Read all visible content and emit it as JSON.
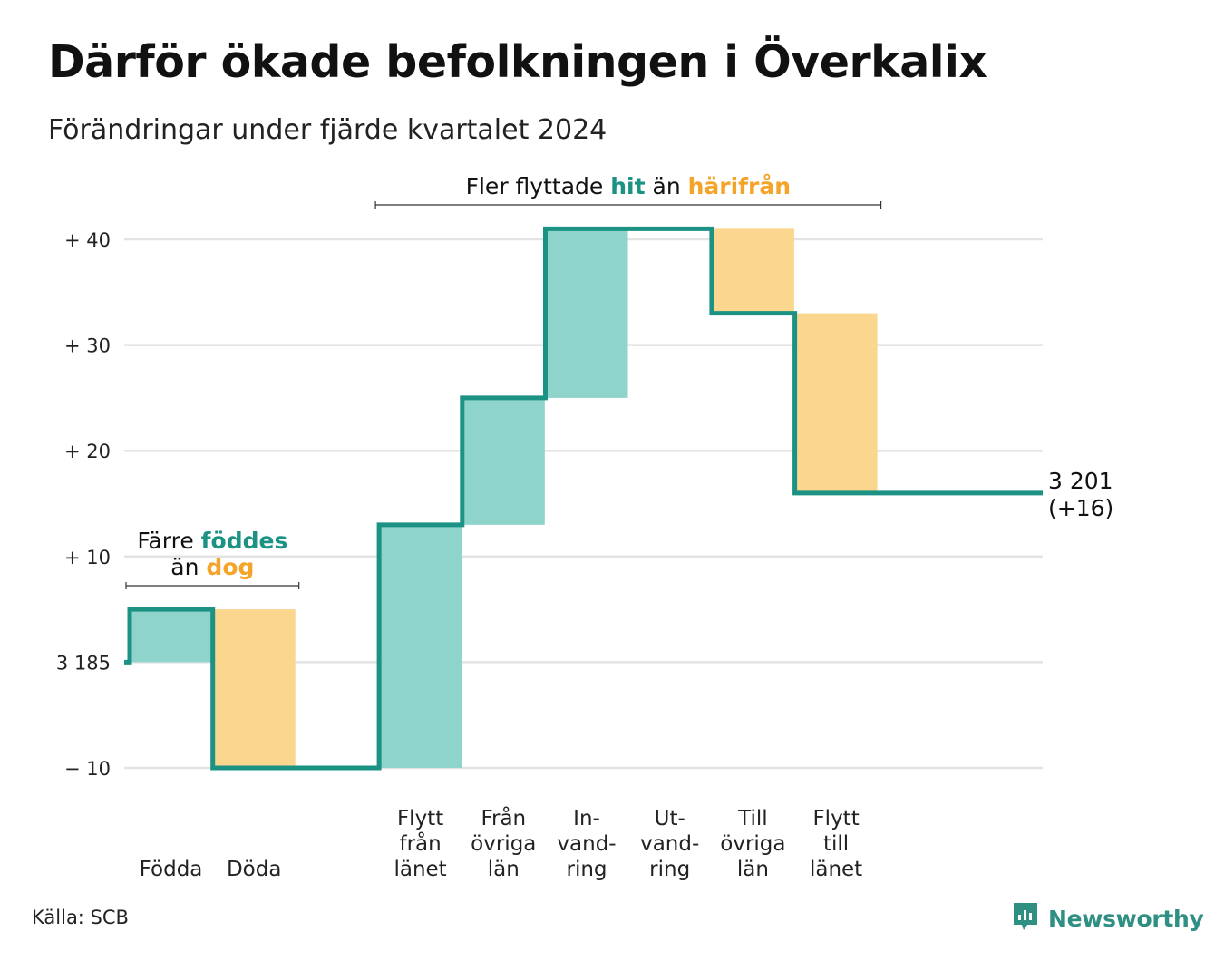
{
  "title": "Därför ökade befolkningen i Överkalix",
  "subtitle": "Förändringar under fjärde kvartalet 2024",
  "source": "Källa: SCB",
  "brand": {
    "name": "Newsworthy",
    "icon": "newsworthy-logo-icon",
    "color": "#2f8f83"
  },
  "colors": {
    "increase": "#8ed4cb",
    "decrease": "#fad68f",
    "line": "#1b9283",
    "grid": "#e3e3e3",
    "accent_teal": "#1b9283",
    "accent_orange": "#f5a42a"
  },
  "chart_data": {
    "type": "waterfall",
    "start": {
      "label": "3 185",
      "value": 3185
    },
    "end": {
      "label_value": "3 201",
      "label_change": "(+16)",
      "value": 3201,
      "change": 16
    },
    "ylim": [
      -10,
      40
    ],
    "yticks": [
      {
        "value": 40,
        "label": "+ 40"
      },
      {
        "value": 30,
        "label": "+ 30"
      },
      {
        "value": 20,
        "label": "+ 20"
      },
      {
        "value": 10,
        "label": "+ 10"
      },
      {
        "value": 0,
        "label": "3 185"
      },
      {
        "value": -10,
        "label": "− 10"
      }
    ],
    "steps": [
      {
        "label": [
          "Födda"
        ],
        "value": 5
      },
      {
        "label": [
          "Döda"
        ],
        "value": -15
      },
      {
        "label": [
          "Flytt",
          "från",
          "länet"
        ],
        "value": 23
      },
      {
        "label": [
          "Från",
          "övriga",
          "län"
        ],
        "value": 12
      },
      {
        "label": [
          "In-",
          "vand-",
          "ring"
        ],
        "value": 16
      },
      {
        "label": [
          "Ut-",
          "vand-",
          "ring"
        ],
        "value": 0
      },
      {
        "label": [
          "Till",
          "övriga",
          "län"
        ],
        "value": -8
      },
      {
        "label": [
          "Flytt",
          "till",
          "länet"
        ],
        "value": -17
      }
    ],
    "annotations": [
      {
        "lines": [
          [
            {
              "text": "Färre ",
              "color": "dark"
            },
            {
              "text": "föddes",
              "color": "teal"
            }
          ],
          [
            {
              "text": "än ",
              "color": "dark"
            },
            {
              "text": "dog",
              "color": "orange"
            }
          ]
        ],
        "span": [
          "Födda",
          "Döda"
        ]
      },
      {
        "lines": [
          [
            {
              "text": "Fler flyttade ",
              "color": "dark"
            },
            {
              "text": "hit",
              "color": "teal"
            },
            {
              "text": " än ",
              "color": "dark"
            },
            {
              "text": "härifrån",
              "color": "orange"
            }
          ]
        ],
        "span": [
          "Flytt från länet",
          "Flytt till länet"
        ]
      }
    ]
  }
}
